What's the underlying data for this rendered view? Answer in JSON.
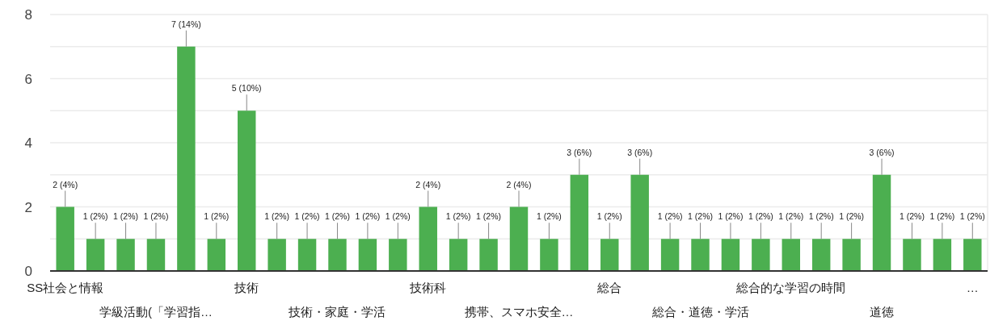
{
  "chart_data": {
    "type": "bar",
    "categories": [
      "SS社会と情報",
      null,
      null,
      "学級活動(「学習指…",
      null,
      null,
      "技術",
      null,
      null,
      "技術・家庭・学活",
      null,
      null,
      "技術科",
      null,
      null,
      "携帯、スマホ安全…",
      null,
      null,
      "総合",
      null,
      null,
      "総合・道徳・学活",
      null,
      null,
      "総合的な学習の時間",
      null,
      null,
      "道徳",
      null,
      null,
      "…"
    ],
    "values": [
      2,
      1,
      1,
      1,
      7,
      1,
      5,
      1,
      1,
      1,
      1,
      1,
      2,
      1,
      1,
      2,
      1,
      3,
      1,
      3,
      1,
      1,
      1,
      1,
      1,
      1,
      1,
      3,
      1,
      1,
      1
    ],
    "value_labels": [
      "2 (4%)",
      "1 (2%)",
      "1 (2%)",
      "1 (2%)",
      "7 (14%)",
      "1 (2%)",
      "5 (10%)",
      "1 (2%)",
      "1 (2%)",
      "1 (2%)",
      "1 (2%)",
      "1 (2%)",
      "2 (4%)",
      "1 (2%)",
      "1 (2%)",
      "2 (4%)",
      "1 (2%)",
      "3 (6%)",
      "1 (2%)",
      "3 (6%)",
      "1 (2%)",
      "1 (2%)",
      "1 (2%)",
      "1 (2%)",
      "1 (2%)",
      "1 (2%)",
      "1 (2%)",
      "3 (6%)",
      "1 (2%)",
      "1 (2%)",
      "1 (2%)"
    ],
    "color": "#4caf50",
    "ylim": [
      0,
      8
    ],
    "yticks": [
      0,
      {
        "value": 1,
        "label": null
      },
      2,
      {
        "value": 3,
        "label": null
      },
      4,
      {
        "value": 5,
        "label": null
      },
      6,
      {
        "value": 7,
        "label": null
      },
      8
    ],
    "grid": "y"
  }
}
